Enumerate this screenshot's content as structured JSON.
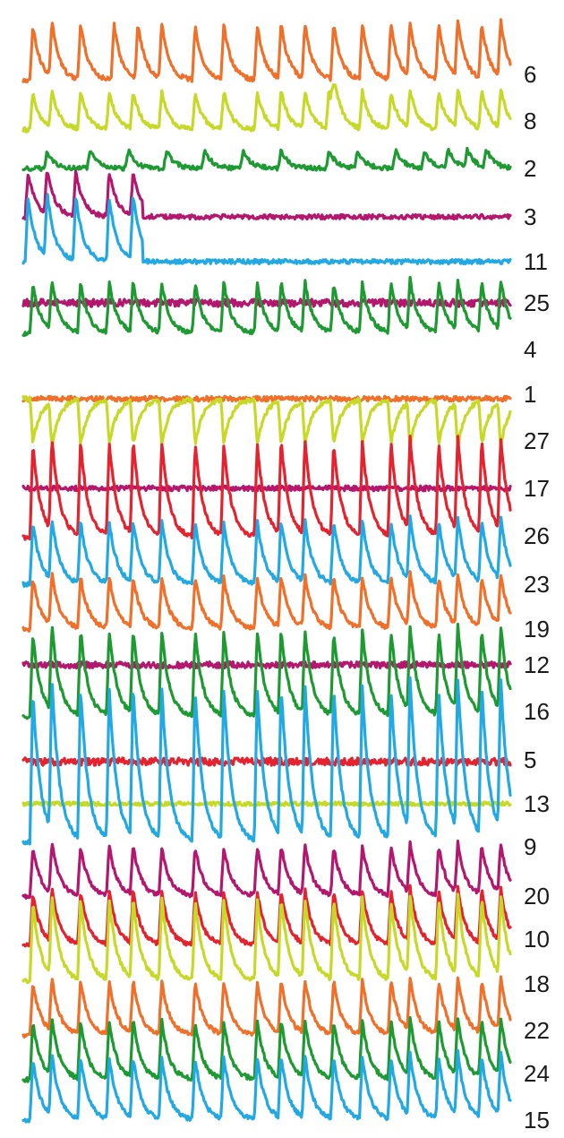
{
  "chart_data": {
    "type": "line",
    "title": "",
    "xlabel": "",
    "ylabel": "",
    "legend": "none",
    "grid": false,
    "colors": {
      "orange": "#f0702a",
      "yellowgreen": "#c7d927",
      "green": "#1e9a32",
      "magenta": "#b3176e",
      "blue": "#22a9e3",
      "red": "#e4232f"
    },
    "series": [
      {
        "label": "6",
        "color": "orange",
        "kind": "spiking",
        "amplitude": 62,
        "baseline_y": 90,
        "spike_times": [
          2,
          6,
          12,
          19,
          24,
          29,
          36,
          42,
          49,
          54,
          59,
          65,
          71,
          77,
          81,
          87,
          91,
          96,
          100
        ]
      },
      {
        "label": "8",
        "color": "yellowgreen",
        "kind": "spiking",
        "amplitude": 42,
        "baseline_y": 145,
        "spike_times": [
          2,
          6,
          12,
          18,
          23,
          29,
          36,
          42,
          49,
          54,
          59,
          64,
          65,
          71,
          77,
          81,
          87,
          91,
          96,
          100
        ]
      },
      {
        "label": "2",
        "color": "green",
        "kind": "spiking_sparse",
        "amplitude": 20,
        "baseline_y": 188,
        "spike_times": [
          5,
          14,
          22,
          30,
          38,
          46,
          54,
          64,
          70,
          78,
          84,
          89,
          93,
          97
        ]
      },
      {
        "label": "3",
        "color": "magenta",
        "kind": "early_spikes_then_silent",
        "amplitude": 50,
        "baseline_y": 242,
        "spike_times": [
          1,
          5,
          11,
          18,
          23
        ],
        "silent_after": 25
      },
      {
        "label": "11",
        "color": "blue",
        "kind": "early_spikes_then_silent",
        "amplitude": 72,
        "baseline_y": 292,
        "spike_times": [
          1,
          5,
          11,
          18,
          23
        ],
        "silent_after": 25
      },
      {
        "label": "25",
        "color": "magenta",
        "kind": "flat_noisy",
        "amplitude": 6,
        "baseline_y": 338
      },
      {
        "label": "4",
        "color": "green",
        "kind": "spiking",
        "amplitude": 56,
        "baseline_y": 372,
        "spike_times": [
          2,
          6,
          12,
          18,
          23,
          29,
          36,
          42,
          49,
          54,
          59,
          65,
          71,
          77,
          81,
          87,
          91,
          96,
          100
        ]
      },
      {
        "label": "1",
        "color": "orange",
        "kind": "flat_noisy",
        "amplitude": 4,
        "baseline_y": 445
      },
      {
        "label": "27",
        "color": "yellowgreen",
        "kind": "inverted_spiking",
        "amplitude": 50,
        "baseline_y": 445,
        "spike_times": [
          2,
          6,
          12,
          18,
          23,
          29,
          36,
          42,
          49,
          54,
          59,
          65,
          71,
          77,
          81,
          87,
          91,
          96,
          100
        ]
      },
      {
        "label": "17",
        "color": "magenta",
        "kind": "flat_noisy",
        "amplitude": 4,
        "baseline_y": 545
      },
      {
        "label": "26",
        "color": "red",
        "kind": "spiking",
        "amplitude": 105,
        "baseline_y": 600,
        "spike_times": [
          2,
          6,
          12,
          18,
          23,
          29,
          36,
          42,
          49,
          54,
          59,
          65,
          71,
          77,
          81,
          87,
          91,
          96,
          100
        ]
      },
      {
        "label": "23",
        "color": "blue",
        "kind": "spiking",
        "amplitude": 70,
        "baseline_y": 652,
        "spike_times": [
          2,
          6,
          12,
          18,
          23,
          29,
          36,
          42,
          49,
          54,
          59,
          65,
          71,
          77,
          81,
          87,
          91,
          96,
          100
        ]
      },
      {
        "label": "19",
        "color": "orange",
        "kind": "spiking",
        "amplitude": 58,
        "baseline_y": 702,
        "spike_times": [
          2,
          6,
          12,
          18,
          23,
          29,
          36,
          42,
          49,
          54,
          59,
          65,
          71,
          77,
          81,
          87,
          91,
          96,
          100
        ]
      },
      {
        "label": "12",
        "color": "magenta",
        "kind": "flat_noisy",
        "amplitude": 5,
        "baseline_y": 742
      },
      {
        "label": "16",
        "color": "green",
        "kind": "spiking",
        "amplitude": 95,
        "baseline_y": 800,
        "spike_times": [
          2,
          6,
          12,
          18,
          23,
          29,
          36,
          42,
          49,
          54,
          59,
          65,
          71,
          77,
          81,
          87,
          91,
          96,
          100
        ]
      },
      {
        "label": "5",
        "color": "red",
        "kind": "flat_noisy",
        "amplitude": 6,
        "baseline_y": 850
      },
      {
        "label": "13",
        "color": "yellowgreen",
        "kind": "flat_noisy",
        "amplitude": 3,
        "baseline_y": 897
      },
      {
        "label": "9",
        "color": "blue",
        "kind": "spiking",
        "amplitude": 170,
        "baseline_y": 940,
        "spike_times": [
          2,
          6,
          12,
          18,
          23,
          29,
          36,
          42,
          49,
          54,
          59,
          65,
          71,
          77,
          81,
          87,
          91,
          96,
          100
        ]
      },
      {
        "label": "20",
        "color": "magenta",
        "kind": "spiking",
        "amplitude": 55,
        "baseline_y": 1000,
        "spike_times": [
          2,
          6,
          12,
          18,
          23,
          29,
          36,
          42,
          49,
          54,
          59,
          65,
          71,
          77,
          81,
          87,
          91,
          96,
          100
        ]
      },
      {
        "label": "10",
        "color": "red",
        "kind": "spiking",
        "amplitude": 60,
        "baseline_y": 1055,
        "spike_times": [
          2,
          6,
          12,
          18,
          23,
          29,
          36,
          42,
          49,
          54,
          59,
          65,
          71,
          77,
          81,
          87,
          91,
          96,
          100
        ]
      },
      {
        "label": "18",
        "color": "yellowgreen",
        "kind": "spiking",
        "amplitude": 90,
        "baseline_y": 1095,
        "spike_times": [
          2,
          6,
          12,
          18,
          23,
          29,
          36,
          42,
          49,
          54,
          59,
          65,
          71,
          77,
          81,
          87,
          91,
          96,
          100
        ]
      },
      {
        "label": "22",
        "color": "orange",
        "kind": "spiking",
        "amplitude": 60,
        "baseline_y": 1155,
        "spike_times": [
          2,
          6,
          12,
          18,
          23,
          29,
          36,
          42,
          49,
          54,
          59,
          65,
          71,
          77,
          81,
          87,
          91,
          96,
          100
        ]
      },
      {
        "label": "24",
        "color": "green",
        "kind": "spiking",
        "amplitude": 65,
        "baseline_y": 1205,
        "spike_times": [
          2,
          6,
          12,
          18,
          23,
          29,
          36,
          42,
          49,
          54,
          59,
          65,
          71,
          77,
          81,
          87,
          91,
          96,
          100
        ]
      },
      {
        "label": "15",
        "color": "blue",
        "kind": "spiking",
        "amplitude": 70,
        "baseline_y": 1250,
        "spike_times": [
          2,
          6,
          12,
          18,
          23,
          29,
          36,
          42,
          49,
          54,
          59,
          65,
          71,
          77,
          81,
          87,
          91,
          96,
          100
        ]
      }
    ]
  }
}
